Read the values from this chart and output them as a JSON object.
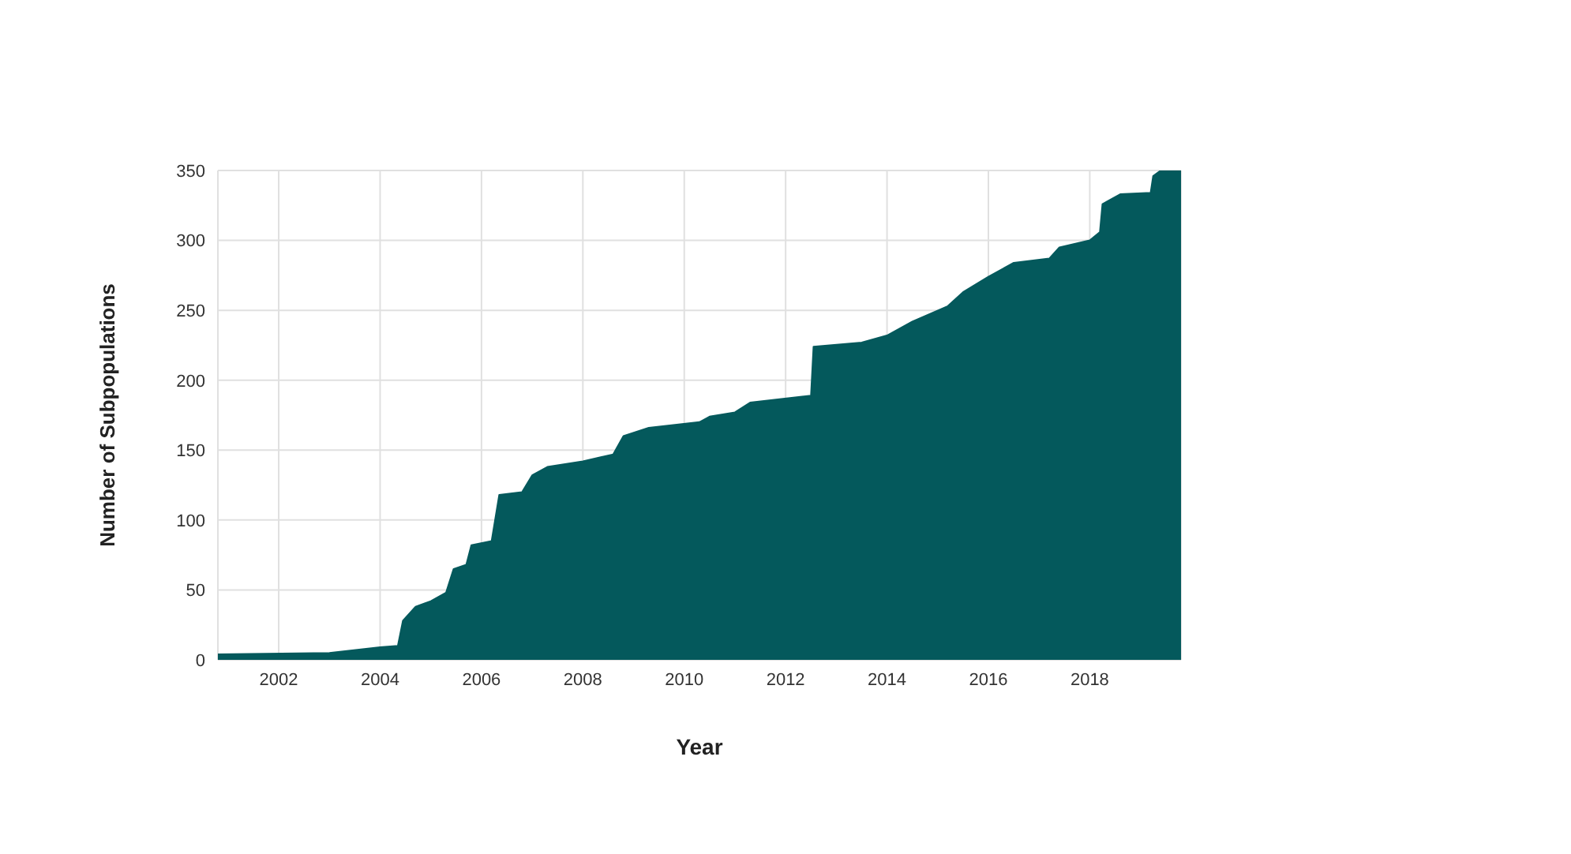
{
  "chart_data": {
    "type": "area",
    "xlabel": "Year",
    "ylabel": "Number of Subpopulations",
    "x": [
      2000.8,
      2003.0,
      2004.0,
      2004.35,
      2004.45,
      2004.7,
      2005.0,
      2005.3,
      2005.45,
      2005.7,
      2005.8,
      2006.2,
      2006.35,
      2006.8,
      2007.0,
      2007.3,
      2008.0,
      2008.6,
      2008.8,
      2009.3,
      2010.3,
      2010.5,
      2011.0,
      2011.3,
      2012.5,
      2012.55,
      2013.5,
      2014.0,
      2014.5,
      2015.2,
      2015.5,
      2016.0,
      2016.5,
      2017.2,
      2017.4,
      2018.0,
      2018.2,
      2018.25,
      2018.6,
      2019.2,
      2019.25,
      2019.4,
      2019.8
    ],
    "series": [
      {
        "color": "#04595c",
        "values": [
          4,
          5,
          9,
          10,
          28,
          38,
          42,
          48,
          65,
          68,
          82,
          85,
          118,
          120,
          132,
          138,
          142,
          147,
          160,
          166,
          170,
          174,
          177,
          184,
          189,
          224,
          227,
          232,
          242,
          253,
          263,
          274,
          284,
          287,
          295,
          300,
          306,
          326,
          333,
          334,
          346,
          350,
          350
        ]
      }
    ],
    "xlim": [
      2000.8,
      2019.8
    ],
    "xticks": [
      2002,
      2004,
      2006,
      2008,
      2010,
      2012,
      2014,
      2016,
      2018
    ],
    "ylim": [
      0,
      350
    ],
    "yticks": [
      0,
      50,
      100,
      150,
      200,
      250,
      300,
      350
    ],
    "grid": true,
    "legend": false
  }
}
